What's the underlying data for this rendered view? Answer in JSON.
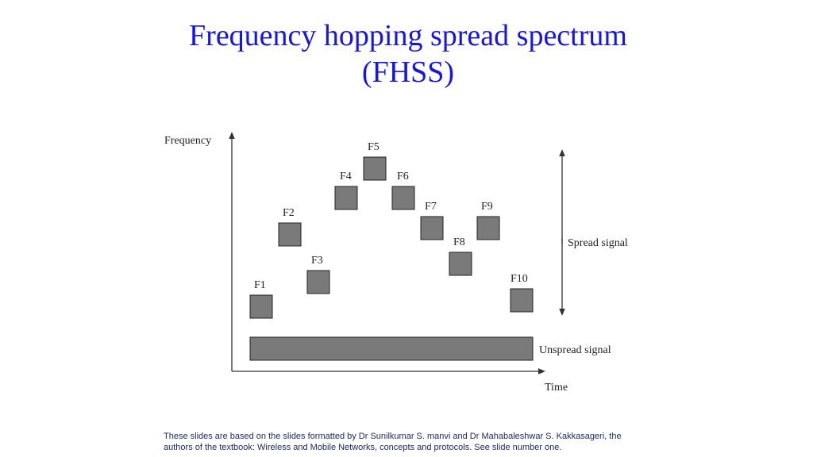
{
  "slide": {
    "title_line1": "Frequency hopping spread spectrum",
    "title_line2": "(FHSS)"
  },
  "diagram": {
    "y_axis_label": "Frequency",
    "x_axis_label": "Time",
    "spread_label": "Spread signal",
    "unspread_label": "Unspread signal",
    "hops": [
      {
        "label": "F1"
      },
      {
        "label": "F2"
      },
      {
        "label": "F3"
      },
      {
        "label": "F4"
      },
      {
        "label": "F5"
      },
      {
        "label": "F6"
      },
      {
        "label": "F7"
      },
      {
        "label": "F8"
      },
      {
        "label": "F9"
      },
      {
        "label": "F10"
      }
    ],
    "colors": {
      "block_fill": "#7a7a7a",
      "block_stroke": "#222222",
      "axis": "#333333"
    }
  },
  "footer": {
    "line1": "These slides are based on the slides formatted by Dr Sunilkumar S. manvi and Dr Mahabaleshwar S. Kakkasageri, the",
    "line2": "authors of the textbook: Wireless and Mobile Networks, concepts and protocols. See slide number one."
  }
}
